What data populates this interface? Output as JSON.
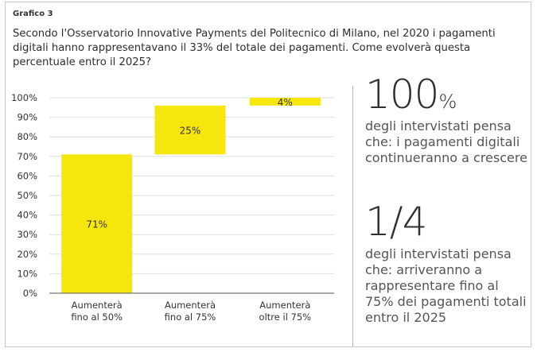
{
  "heading": "Grafico 3",
  "question": "Secondo l'Osservatorio Innovative Payments del Politecnico di Milano, nel 2020 i pagamenti digitali hanno rappresentavano il 33% del totale dei pagamenti. Come evolverà questa percentuale entro il 2025?",
  "colors": {
    "bar": "#f7e60c",
    "grid": "#dedede",
    "axis": "#555555",
    "text": "#333333"
  },
  "chart_data": {
    "type": "bar",
    "subtype": "waterfall",
    "categories": [
      "Aumenterà\nfino al 50%",
      "Aumenterà\nfino al 75%",
      "Aumenterà\noltre il 75%"
    ],
    "values": [
      71,
      25,
      4
    ],
    "data_labels": [
      "71%",
      "25%",
      "4%"
    ],
    "yticks": [
      "0%",
      "10%",
      "20%",
      "30%",
      "40%",
      "50%",
      "60%",
      "70%",
      "80%",
      "90%",
      "100%"
    ],
    "ylim": [
      0,
      100
    ],
    "grid": true,
    "legend": "none"
  },
  "stats": [
    {
      "number": "100",
      "unit": "%",
      "text": "degli intervistati pensa che: i pagamenti digitali continueranno a crescere"
    },
    {
      "number": "1/4",
      "unit": "",
      "text": "degli intervistati pensa che: arriveranno a rappresentare fino al 75% dei pagamenti totali entro il 2025"
    }
  ]
}
